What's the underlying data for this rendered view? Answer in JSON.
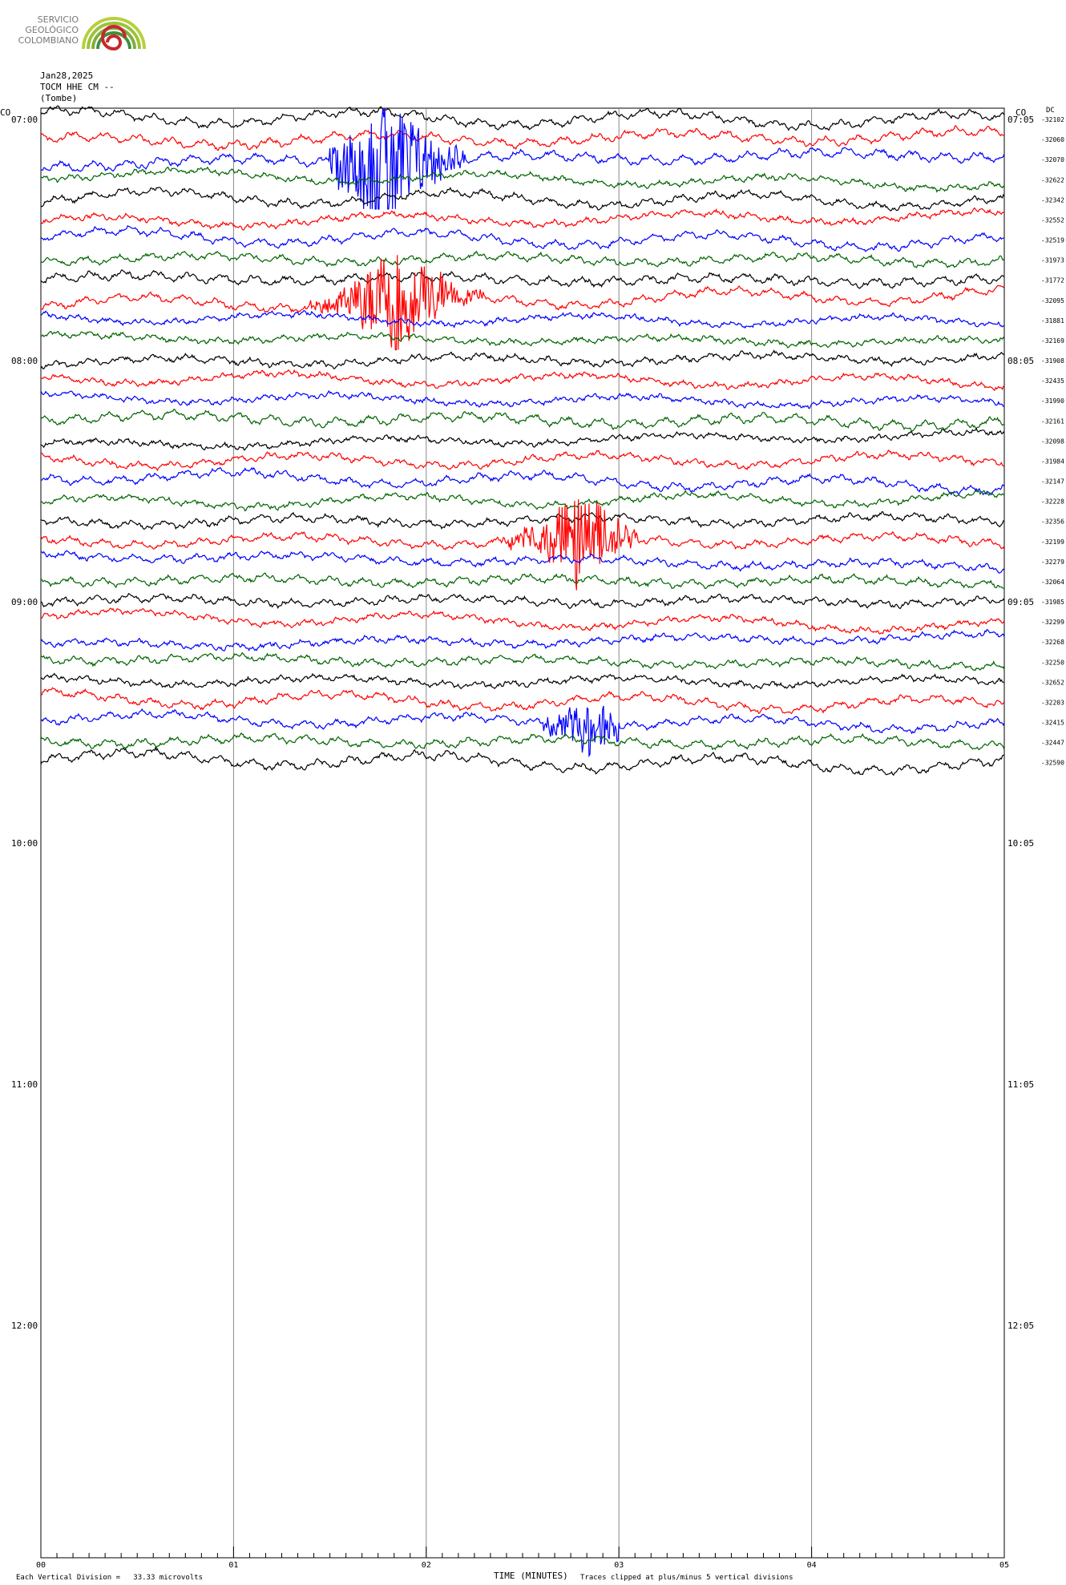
{
  "logo": {
    "lines": [
      "SERVICIO",
      "GEOLÓGICO",
      "COLOMBIANO"
    ],
    "colors": {
      "gray": "#8a8a8a",
      "green_light": "#b7cf3a",
      "green": "#7fae3b",
      "green_dark": "#3f8f3c",
      "red": "#c7282c"
    }
  },
  "header": {
    "date": "Jan28,2025",
    "station": "TOCM HHE CM --",
    "location": "(Tombe)"
  },
  "corner_labels": {
    "left": "CO",
    "right": "CO",
    "dc": "DC"
  },
  "footer": {
    "division_note": "Each Vertical Division =   33.33 microvolts",
    "axis_title": "TIME (MINUTES)",
    "clip_note": "Traces clipped at plus/minus 5 vertical divisions"
  },
  "chart_data": {
    "type": "line",
    "title": "",
    "xlabel": "TIME (MINUTES)",
    "ylabel": "",
    "xlim": [
      0,
      5
    ],
    "x_ticks": [
      "00",
      "01",
      "02",
      "03",
      "04",
      "05"
    ],
    "left_hour_labels": [
      "07:00",
      "08:00",
      "09:00",
      "10:00",
      "11:00",
      "12:00"
    ],
    "right_hour_labels": [
      "07:05",
      "08:05",
      "09:05",
      "10:05",
      "11:05",
      "12:05"
    ],
    "trace_colors": [
      "#000000",
      "#ff0000",
      "#0000ff",
      "#006400"
    ],
    "grid": "vertical lines at each minute",
    "dc_offsets": [
      "-32102",
      "-32060",
      "-32070",
      "-32622",
      "-32342",
      "-32552",
      "-32519",
      "-31973",
      "-31772",
      "-32095",
      "-31881",
      "-32169",
      "-31908",
      "-32435",
      "-31990",
      "-32161",
      "-32098",
      "-31984",
      "-32147",
      "-32228",
      "-32356",
      "-32199",
      "-32279",
      "-32064",
      "-31985",
      "-32299",
      "-32268",
      "-32250",
      "-32652",
      "-32203",
      "-32415",
      "-32447",
      "-32590"
    ],
    "events": [
      {
        "trace": 2,
        "start_min": 1.5,
        "end_min": 2.2,
        "peak_min": 1.8,
        "amp": 5
      },
      {
        "trace": 9,
        "start_min": 1.4,
        "end_min": 2.3,
        "peak_min": 1.85,
        "amp": 4
      },
      {
        "trace": 21,
        "start_min": 2.4,
        "end_min": 3.1,
        "peak_min": 2.8,
        "amp": 3
      },
      {
        "trace": 30,
        "start_min": 2.6,
        "end_min": 3.0,
        "peak_min": 2.85,
        "amp": 1.5
      }
    ]
  }
}
